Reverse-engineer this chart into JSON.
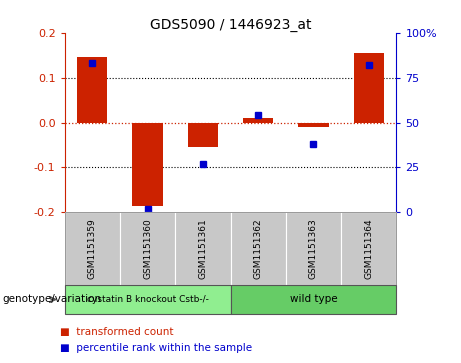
{
  "title": "GDS5090 / 1446923_at",
  "samples": [
    "GSM1151359",
    "GSM1151360",
    "GSM1151361",
    "GSM1151362",
    "GSM1151363",
    "GSM1151364"
  ],
  "bar_values": [
    0.145,
    -0.185,
    -0.055,
    0.01,
    -0.01,
    0.155
  ],
  "percentile_values": [
    0.83,
    0.02,
    0.27,
    0.54,
    0.38,
    0.82
  ],
  "groups": [
    {
      "label": "cystatin B knockout Cstb-/-",
      "indices": [
        0,
        1,
        2
      ],
      "color": "#90EE90"
    },
    {
      "label": "wild type",
      "indices": [
        3,
        4,
        5
      ],
      "color": "#66CC66"
    }
  ],
  "group_row_label": "genotype/variation",
  "ylim": [
    -0.2,
    0.2
  ],
  "y2lim": [
    0,
    100
  ],
  "yticks": [
    -0.2,
    -0.1,
    0.0,
    0.1,
    0.2
  ],
  "y2ticks": [
    0,
    25,
    50,
    75,
    100
  ],
  "y2ticklabels": [
    "0",
    "25",
    "50",
    "75",
    "100%"
  ],
  "bar_color": "#CC2200",
  "dot_color": "#0000CC",
  "zero_line_color": "#CC2200",
  "sample_bg_color": "#C8C8C8",
  "legend_items": [
    "transformed count",
    "percentile rank within the sample"
  ]
}
